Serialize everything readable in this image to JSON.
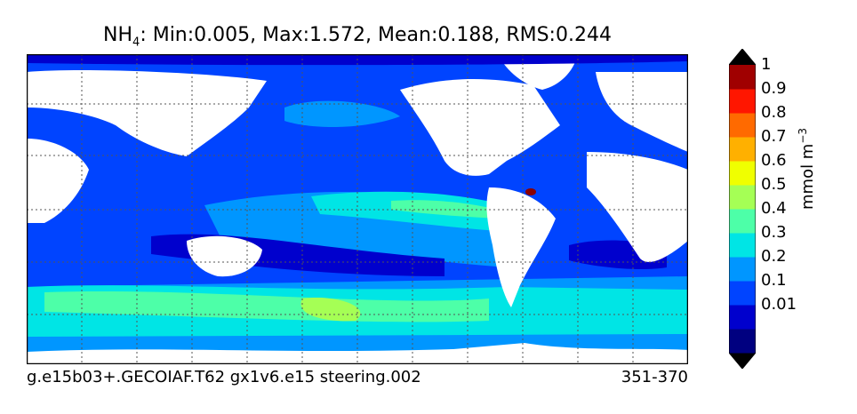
{
  "title": {
    "species": "NH",
    "species_sub": "4",
    "stats": ": Min:0.005, Max:1.572, Mean:0.188, RMS:0.244"
  },
  "footer": {
    "case_name": "g.e15b03+.GECOIAF.T62 gx1v6.e15 steering.002",
    "years": "351-370"
  },
  "colorbar": {
    "unit_text": "mmol m",
    "unit_exp": "−3",
    "levels": [
      {
        "label": "",
        "color": "#000080"
      },
      {
        "label": "0.01",
        "color": "#0000cd"
      },
      {
        "label": "0.1",
        "color": "#0044ff"
      },
      {
        "label": "0.2",
        "color": "#0096ff"
      },
      {
        "label": "0.3",
        "color": "#00e5e5"
      },
      {
        "label": "0.4",
        "color": "#4dffa8"
      },
      {
        "label": "0.5",
        "color": "#a5ff55"
      },
      {
        "label": "0.6",
        "color": "#f0ff00"
      },
      {
        "label": "0.7",
        "color": "#ffb000"
      },
      {
        "label": "0.8",
        "color": "#ff6a00"
      },
      {
        "label": "0.9",
        "color": "#ff1600"
      },
      {
        "label": "1",
        "color": "#a00000"
      }
    ],
    "under_color": "#000000",
    "over_color": "#000000"
  },
  "map_colors": {
    "land": "#ffffff",
    "ocean_base": "#0044ff",
    "deep_low": "#0000cd",
    "mid": "#0096ff",
    "cyan": "#00e5e5",
    "green": "#4dffa8",
    "lime": "#a5ff55",
    "hot": "#8b0000"
  }
}
